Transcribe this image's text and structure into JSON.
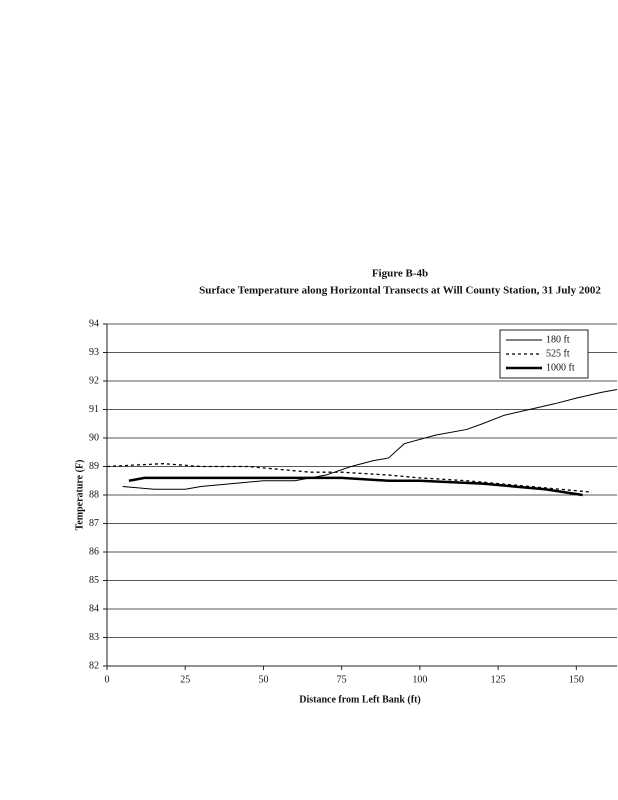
{
  "chart_data": {
    "type": "line",
    "title": "Figure B-4b",
    "subtitle": "Surface Temperature along Horizontal Transects at Will County Station, 31 July 2002",
    "x_label": "Distance from Left Bank (ft)",
    "y_label": "Temperature (F)",
    "xlim": [
      0,
      163
    ],
    "xticks": [
      0,
      25,
      50,
      75,
      100,
      125,
      150
    ],
    "ylim": [
      82,
      94
    ],
    "yticks": [
      82,
      83,
      84,
      85,
      86,
      87,
      88,
      89,
      90,
      91,
      92,
      93,
      94
    ],
    "grid": true,
    "legend": "top-right",
    "series": [
      {
        "name": "180 ft",
        "color": "#000000",
        "style": "thin",
        "x": [
          5,
          15,
          25,
          30,
          40,
          50,
          60,
          65,
          70,
          78,
          85,
          90,
          95,
          105,
          115,
          120,
          127,
          135,
          143,
          150,
          158,
          163
        ],
        "values": [
          88.3,
          88.2,
          88.2,
          88.3,
          88.4,
          88.5,
          88.5,
          88.6,
          88.7,
          89.0,
          89.2,
          89.3,
          89.8,
          90.1,
          90.3,
          90.5,
          90.8,
          91.0,
          91.2,
          91.4,
          91.6,
          91.7
        ]
      },
      {
        "name": "525 ft",
        "color": "#000000",
        "style": "dotted",
        "x": [
          0,
          18,
          30,
          45,
          55,
          65,
          75,
          90,
          100,
          115,
          125,
          135,
          145,
          155
        ],
        "values": [
          89.0,
          89.1,
          89.0,
          89.0,
          88.9,
          88.8,
          88.8,
          88.7,
          88.6,
          88.5,
          88.4,
          88.3,
          88.2,
          88.1
        ]
      },
      {
        "name": "1000 ft",
        "color": "#000000",
        "style": "bold",
        "x": [
          7,
          12,
          25,
          50,
          75,
          90,
          100,
          120,
          130,
          140,
          152
        ],
        "values": [
          88.5,
          88.6,
          88.6,
          88.6,
          88.6,
          88.5,
          88.5,
          88.4,
          88.3,
          88.2,
          88.0
        ]
      }
    ]
  }
}
